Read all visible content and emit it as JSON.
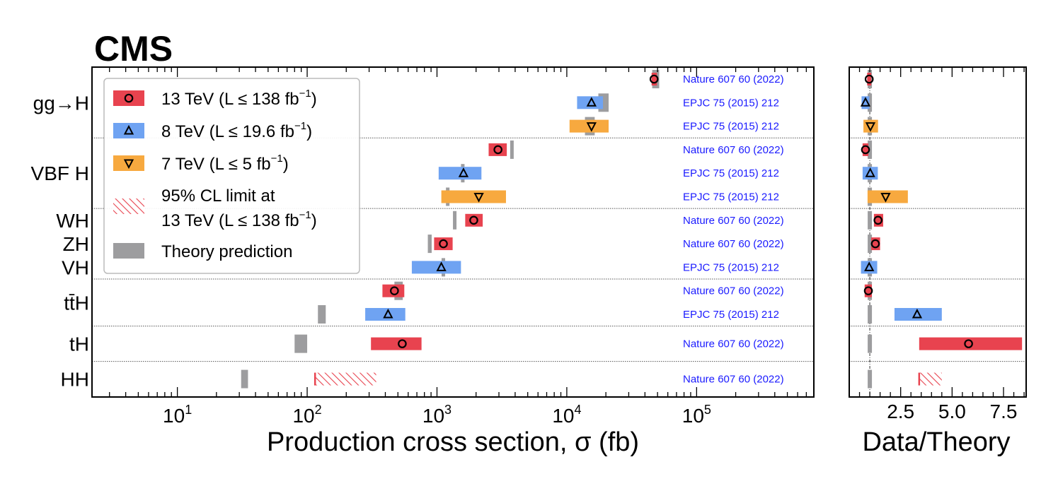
{
  "logo": "CMS",
  "chart_data": {
    "type": "scatter",
    "xlabel": "Production cross section, σ (fb)",
    "xscale": "log",
    "xlim": [
      2.2,
      800000
    ],
    "xticks": [
      {
        "base": "10",
        "exp": "1",
        "value": 10
      },
      {
        "base": "10",
        "exp": "2",
        "value": 100
      },
      {
        "base": "10",
        "exp": "3",
        "value": 1000
      },
      {
        "base": "10",
        "exp": "4",
        "value": 10000
      },
      {
        "base": "10",
        "exp": "5",
        "value": 100000
      }
    ],
    "ratio_panel": {
      "xlabel": "Data/Theory",
      "xlim": [
        0,
        8.6
      ],
      "xticks": [
        "2.5",
        "5.0",
        "7.5"
      ],
      "tick_values": [
        2.5,
        5.0,
        7.5
      ]
    },
    "process_labels": [
      {
        "text": "gg→H",
        "row": 1
      },
      {
        "text": "VBF H",
        "row": 4
      },
      {
        "text": "WH",
        "row": 6
      },
      {
        "text": "ZH",
        "row": 7
      },
      {
        "text": "VH",
        "row": 8
      },
      {
        "text": "tt̄H",
        "row": 9.5
      },
      {
        "text": "tH",
        "row": 11.25
      },
      {
        "text": "HH",
        "row": 12.75
      }
    ],
    "separators": [
      2.5,
      5.5,
      8.5,
      10.5,
      12.0
    ],
    "legend": {
      "position": "top-left",
      "entries": [
        {
          "key": "13",
          "lines": [
            "13 TeV (L ≤ 138 fb",
            "−1",
            ")"
          ]
        },
        {
          "key": "8",
          "lines": [
            "8 TeV (L ≤ 19.6 fb",
            "−1",
            ")"
          ]
        },
        {
          "key": "7",
          "lines": [
            "7 TeV (L ≤ 5 fb",
            "−1",
            ")"
          ]
        },
        {
          "key": "limit",
          "lines": [
            "95% CL limit at",
            "13 TeV (L ≤ 138 fb",
            "−1",
            ")"
          ]
        },
        {
          "key": "theory",
          "lines": [
            "Theory prediction"
          ]
        }
      ]
    },
    "series_style": {
      "13": {
        "color": "#e8434f",
        "marker": "circle"
      },
      "8": {
        "color": "#6fa3f2",
        "marker": "triangle-up"
      },
      "7": {
        "color": "#f7a93f",
        "marker": "triangle-down"
      },
      "limit": {
        "color": "#e8434f",
        "marker": "hatch"
      },
      "theory": {
        "color": "#9d9d9f",
        "marker": "bar"
      }
    },
    "rows": [
      {
        "process": "gg→H",
        "energy": "13",
        "value": 47000,
        "lo": 45000,
        "hi": 49500,
        "theory": 48500,
        "theory_lo": 45500,
        "theory_hi": 51500,
        "ratio": 0.97,
        "ratio_lo": 0.87,
        "ratio_hi": 1.07,
        "ref": "Nature 607 60 (2022)"
      },
      {
        "process": "gg→H",
        "energy": "8",
        "value": 15500,
        "lo": 12000,
        "hi": 19000,
        "theory": 19200,
        "theory_lo": 17500,
        "theory_hi": 21000,
        "ratio": 0.79,
        "ratio_lo": 0.6,
        "ratio_hi": 0.98,
        "ref": "EPJC 75 (2015) 212"
      },
      {
        "process": "gg→H",
        "energy": "7",
        "value": 15500,
        "lo": 10500,
        "hi": 21000,
        "theory": 15100,
        "theory_lo": 13800,
        "theory_hi": 16400,
        "ratio": 1.03,
        "ratio_lo": 0.69,
        "ratio_hi": 1.4,
        "ref": "EPJC 75 (2015) 212"
      },
      {
        "process": "VBF H",
        "energy": "13",
        "value": 2950,
        "lo": 2500,
        "hi": 3450,
        "theory": 3780,
        "theory_lo": 3700,
        "theory_hi": 3860,
        "ratio": 0.79,
        "ratio_lo": 0.65,
        "ratio_hi": 0.93,
        "ref": "Nature 607 60 (2022)"
      },
      {
        "process": "VBF H",
        "energy": "8",
        "value": 1600,
        "lo": 1030,
        "hi": 2200,
        "theory": 1580,
        "theory_lo": 1540,
        "theory_hi": 1620,
        "ratio": 1.02,
        "ratio_lo": 0.65,
        "ratio_hi": 1.39,
        "ref": "EPJC 75 (2015) 212"
      },
      {
        "process": "VBF H",
        "energy": "7",
        "value": 2100,
        "lo": 1080,
        "hi": 3400,
        "theory": 1210,
        "theory_lo": 1180,
        "theory_hi": 1240,
        "ratio": 1.77,
        "ratio_lo": 0.89,
        "ratio_hi": 2.85,
        "ref": "EPJC 75 (2015) 212"
      },
      {
        "process": "WH",
        "energy": "13",
        "value": 1920,
        "lo": 1650,
        "hi": 2250,
        "theory": 1370,
        "theory_lo": 1345,
        "theory_hi": 1395,
        "ratio": 1.4,
        "ratio_lo": 1.2,
        "ratio_hi": 1.65,
        "ref": "Nature 607 60 (2022)"
      },
      {
        "process": "ZH",
        "energy": "13",
        "value": 1120,
        "lo": 950,
        "hi": 1320,
        "theory": 880,
        "theory_lo": 850,
        "theory_hi": 910,
        "ratio": 1.27,
        "ratio_lo": 1.07,
        "ratio_hi": 1.5,
        "ref": "Nature 607 60 (2022)"
      },
      {
        "process": "VH",
        "energy": "8",
        "value": 1080,
        "lo": 640,
        "hi": 1530,
        "theory": 1120,
        "theory_lo": 1090,
        "theory_hi": 1150,
        "ratio": 0.97,
        "ratio_lo": 0.57,
        "ratio_hi": 1.36,
        "ref": "EPJC 75 (2015) 212"
      },
      {
        "process": "tt̄H",
        "energy": "13",
        "value": 470,
        "lo": 380,
        "hi": 560,
        "theory": 507,
        "theory_lo": 470,
        "theory_hi": 545,
        "ratio": 0.93,
        "ratio_lo": 0.75,
        "ratio_hi": 1.1,
        "ref": "Nature 607 60 (2022)"
      },
      {
        "process": "tt̄H",
        "energy": "8",
        "value": 420,
        "lo": 280,
        "hi": 570,
        "theory": 130,
        "theory_lo": 121,
        "theory_hi": 139,
        "ratio": 3.3,
        "ratio_lo": 2.2,
        "ratio_hi": 4.5,
        "ref": "EPJC 75 (2015) 212"
      },
      {
        "process": "tH",
        "energy": "13",
        "value": 540,
        "lo": 310,
        "hi": 760,
        "theory": 90,
        "theory_lo": 80,
        "theory_hi": 100,
        "ratio": 5.8,
        "ratio_lo": 3.4,
        "ratio_hi": 8.4,
        "ref": "Nature 607 60 (2022)"
      },
      {
        "process": "HH",
        "energy": "limit",
        "value": 340,
        "lo": 115,
        "hi": 340,
        "theory": 33,
        "theory_lo": 31,
        "theory_hi": 35,
        "ratio": 3.4,
        "ratio_lo": 3.4,
        "ratio_hi": 4.5,
        "ref": "Nature 607 60 (2022)"
      }
    ],
    "row_positions": [
      0,
      1,
      2,
      3,
      4,
      5,
      6,
      7,
      8,
      9,
      10,
      11.25,
      12.75
    ]
  }
}
